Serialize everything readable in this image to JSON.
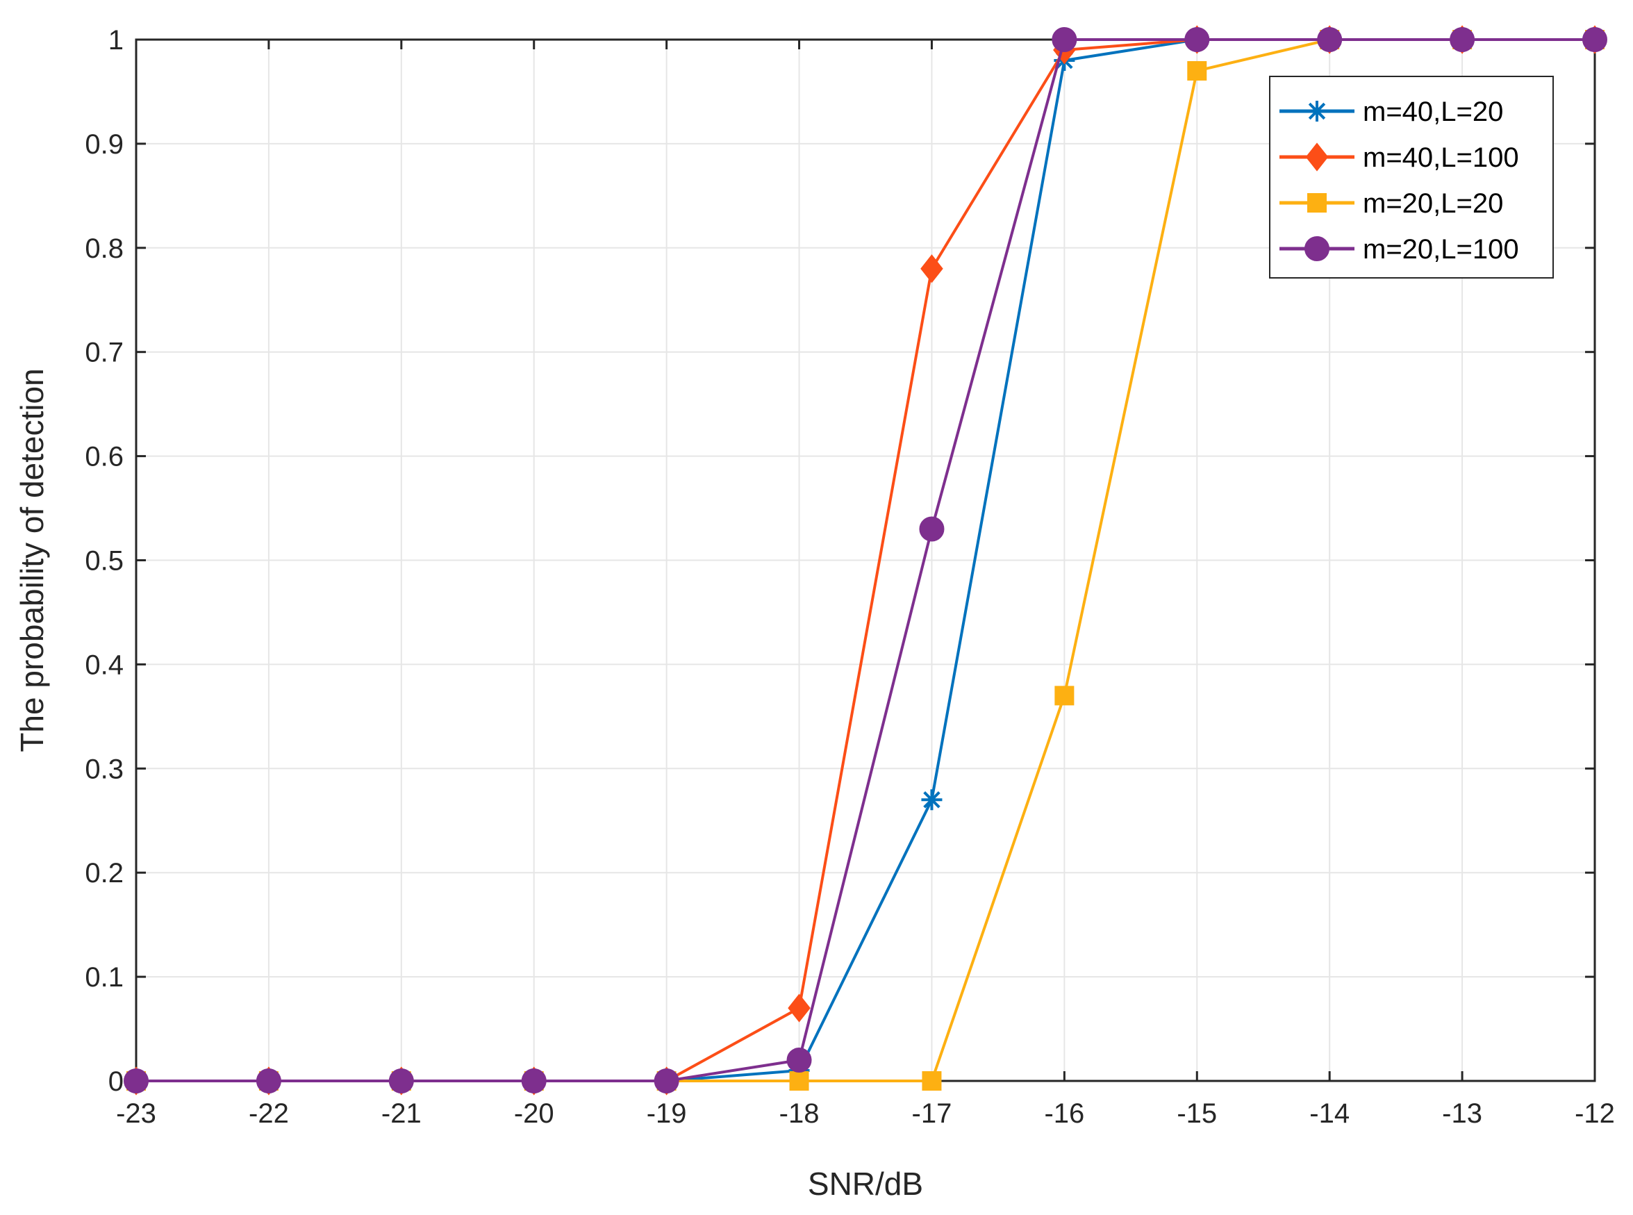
{
  "chart_data": {
    "type": "line",
    "title": "",
    "xlabel": "SNR/dB",
    "ylabel": "The probability of detection",
    "xlim": [
      -23,
      -12
    ],
    "ylim": [
      0,
      1
    ],
    "x_ticks": [
      -23,
      -22,
      -21,
      -20,
      -19,
      -18,
      -17,
      -16,
      -15,
      -14,
      -13,
      -12
    ],
    "y_ticks": [
      0,
      0.1,
      0.2,
      0.3,
      0.4,
      0.5,
      0.6,
      0.7,
      0.8,
      0.9,
      1
    ],
    "grid": true,
    "legend_position": "top-right",
    "x": [
      -23,
      -22,
      -21,
      -20,
      -19,
      -18,
      -17,
      -16,
      -15,
      -14,
      -13,
      -12
    ],
    "series": [
      {
        "name": "m=40,L=20",
        "color": "#0072bd",
        "marker": "asterisk",
        "values": [
          0,
          0,
          0,
          0,
          0,
          0.01,
          0.27,
          0.98,
          1,
          1,
          1,
          1
        ]
      },
      {
        "name": "m=40,L=100",
        "color": "#fc4e17",
        "marker": "diamond",
        "values": [
          0,
          0,
          0,
          0,
          0,
          0.07,
          0.78,
          0.99,
          1,
          1,
          1,
          1
        ]
      },
      {
        "name": "m=20,L=20",
        "color": "#fdb012",
        "marker": "square",
        "values": [
          0,
          0,
          0,
          0,
          0,
          0,
          0,
          0.37,
          0.97,
          1,
          1,
          1
        ]
      },
      {
        "name": "m=20,L=100",
        "color": "#7e2f8e",
        "marker": "circle",
        "values": [
          0,
          0,
          0,
          0,
          0,
          0.02,
          0.53,
          1,
          1,
          1,
          1,
          1
        ]
      }
    ]
  }
}
